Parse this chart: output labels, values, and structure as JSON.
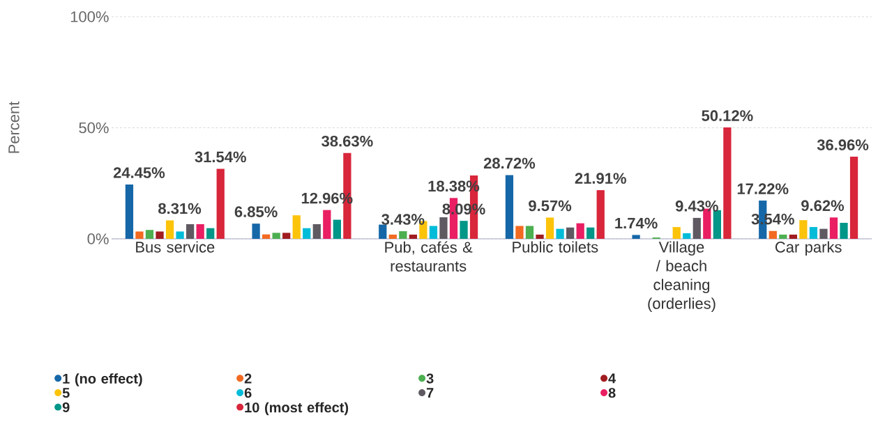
{
  "chart_data": {
    "type": "bar",
    "ylabel": "Percent",
    "categories": [
      "Bus service",
      null,
      "Pub, cafés & restaurants",
      "Public toilets",
      "Village / beach cleaning (orderlies)",
      "Car parks"
    ],
    "ylim": [
      0,
      100
    ],
    "yticks": [
      {
        "value": 0,
        "label": "0%"
      },
      {
        "value": 50,
        "label": "50%"
      },
      {
        "value": 100,
        "label": "100%"
      }
    ],
    "grid": "y",
    "legend": "bottom",
    "series": [
      {
        "name": "1 (no effect)",
        "color": "#1567a8",
        "values": [
          24.45,
          6.85,
          6.4,
          28.72,
          1.74,
          17.22
        ],
        "value_labels": [
          "24.45%",
          "6.85%",
          null,
          "28.72%",
          "1.74%",
          "17.22%"
        ]
      },
      {
        "name": "2",
        "color": "#f26a21",
        "values": [
          3.3,
          2.0,
          1.9,
          5.8,
          0,
          3.54
        ],
        "value_labels": [
          null,
          null,
          null,
          null,
          null,
          "3.54%"
        ]
      },
      {
        "name": "3",
        "color": "#4caf50",
        "values": [
          4.0,
          2.7,
          3.43,
          5.8,
          0.6,
          1.9
        ],
        "value_labels": [
          null,
          null,
          "3.43%",
          null,
          null,
          null
        ]
      },
      {
        "name": "4",
        "color": "#a01c20",
        "values": [
          3.3,
          2.7,
          1.9,
          1.9,
          0,
          1.9
        ]
      },
      {
        "name": "5",
        "color": "#fcc30b",
        "values": [
          8.31,
          10.6,
          8.0,
          9.57,
          5.3,
          8.4
        ],
        "value_labels": [
          "8.31%",
          null,
          null,
          "9.57%",
          null,
          null
        ]
      },
      {
        "name": "6",
        "color": "#00bcd9",
        "values": [
          3.3,
          4.8,
          5.8,
          4.5,
          2.5,
          5.3
        ]
      },
      {
        "name": "7",
        "color": "#5f5a62",
        "values": [
          6.6,
          6.6,
          9.7,
          5.1,
          9.43,
          4.5
        ],
        "value_labels": [
          null,
          null,
          null,
          null,
          "9.43%",
          null
        ]
      },
      {
        "name": "8",
        "color": "#e91e63",
        "values": [
          6.6,
          12.96,
          18.38,
          7.0,
          13.6,
          9.62
        ],
        "value_labels": [
          null,
          "12.96%",
          "18.38%",
          null,
          null,
          "9.62%"
        ]
      },
      {
        "name": "9",
        "color": "#009688",
        "values": [
          4.8,
          8.6,
          8.09,
          5.1,
          12.9,
          7.2
        ],
        "value_labels": [
          null,
          null,
          "8.09%",
          null,
          null,
          null
        ]
      },
      {
        "name": "10 (most effect)",
        "color": "#d8263b",
        "values": [
          31.54,
          38.63,
          28.5,
          21.91,
          50.12,
          36.96
        ],
        "value_labels": [
          "31.54%",
          "38.63%",
          null,
          "21.91%",
          "50.12%",
          "36.96%"
        ]
      }
    ]
  }
}
